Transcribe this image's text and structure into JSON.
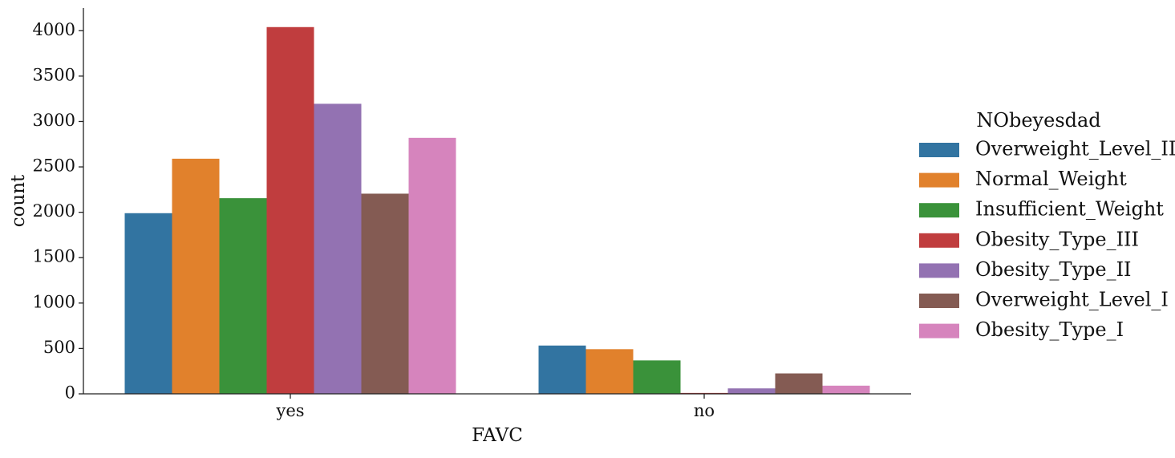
{
  "chart_data": {
    "type": "bar",
    "xlabel": "FAVC",
    "ylabel": "count",
    "categories": [
      "yes",
      "no"
    ],
    "ylim": [
      0,
      4250
    ],
    "yticks": [
      0,
      500,
      1000,
      1500,
      2000,
      2500,
      3000,
      3500,
      4000
    ],
    "grid": false,
    "legend": {
      "title": "NObeyesdad",
      "placement": "right"
    },
    "series": [
      {
        "name": "Overweight_Level_II",
        "color": "#3274a1",
        "values": [
          1990,
          532
        ]
      },
      {
        "name": "Normal_Weight",
        "color": "#e1812c",
        "values": [
          2590,
          492
        ]
      },
      {
        "name": "Insufficient_Weight",
        "color": "#3a923a",
        "values": [
          2155,
          368
        ]
      },
      {
        "name": "Obesity_Type_III",
        "color": "#c03d3e",
        "values": [
          4040,
          10
        ]
      },
      {
        "name": "Obesity_Type_II",
        "color": "#9372b2",
        "values": [
          3195,
          60
        ]
      },
      {
        "name": "Overweight_Level_I",
        "color": "#845b53",
        "values": [
          2205,
          225
        ]
      },
      {
        "name": "Obesity_Type_I",
        "color": "#d684bd",
        "values": [
          2820,
          90
        ]
      }
    ]
  }
}
